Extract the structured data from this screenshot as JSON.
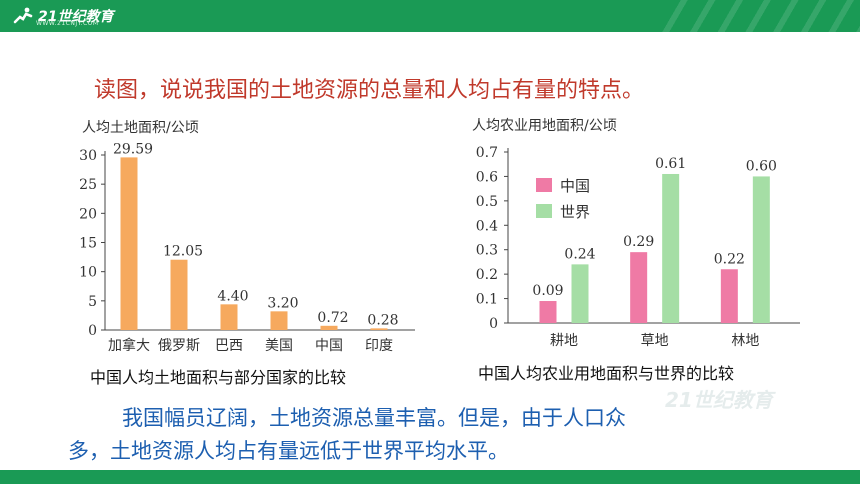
{
  "brand": {
    "logo_text": "21世纪教育",
    "logo_sub": "WWW.21CNJY.COM"
  },
  "colors": {
    "bar_orange": "#f6a95e",
    "bar_pink": "#ef7aa5",
    "bar_green": "#a5dea5",
    "heading": "#c0392b",
    "summary": "#1d5fb0",
    "band": "#1a9a55"
  },
  "heading": "读图，说说我国的土地资源的总量和人均占有量的特点。",
  "left_caption": "中国人均土地面积与部分国家的比较",
  "right_caption": "中国人均农业用地面积与世界的比较",
  "summary": {
    "line1": "我国幅员辽阔，土地资源总量丰富。但是，由于人口众",
    "line2": "多，土地资源人均占有量远低于世界平均水平。"
  },
  "chart_data": [
    {
      "type": "bar",
      "title": "人均土地面积/公顷",
      "categories": [
        "加拿大",
        "俄罗斯",
        "巴西",
        "美国",
        "中国",
        "印度"
      ],
      "values": [
        29.59,
        12.05,
        4.4,
        3.2,
        0.72,
        0.28
      ],
      "value_labels": [
        "29.59",
        "12.05",
        "4.40",
        "3.20",
        "0.72",
        "0.28"
      ],
      "ylim": [
        0,
        30
      ],
      "yticks": [
        "0",
        "5",
        "10",
        "15",
        "20",
        "25",
        "30"
      ],
      "grid": false,
      "legend": "none"
    },
    {
      "type": "bar",
      "title": "人均农业用地面积/公顷",
      "categories": [
        "耕地",
        "草地",
        "林地"
      ],
      "series": [
        {
          "name": "中国",
          "values": [
            0.09,
            0.29,
            0.22
          ],
          "value_labels": [
            "0.09",
            "0.29",
            "0.22"
          ],
          "color": "#ef7aa5"
        },
        {
          "name": "世界",
          "values": [
            0.24,
            0.61,
            0.6
          ],
          "value_labels": [
            "0.24",
            "0.61",
            "0.60"
          ],
          "color": "#a5dea5"
        }
      ],
      "ylim": [
        0,
        0.7
      ],
      "yticks": [
        "0",
        "0.1",
        "0.2",
        "0.3",
        "0.4",
        "0.5",
        "0.6",
        "0.7"
      ],
      "grid": false,
      "legend": "top-left"
    }
  ]
}
